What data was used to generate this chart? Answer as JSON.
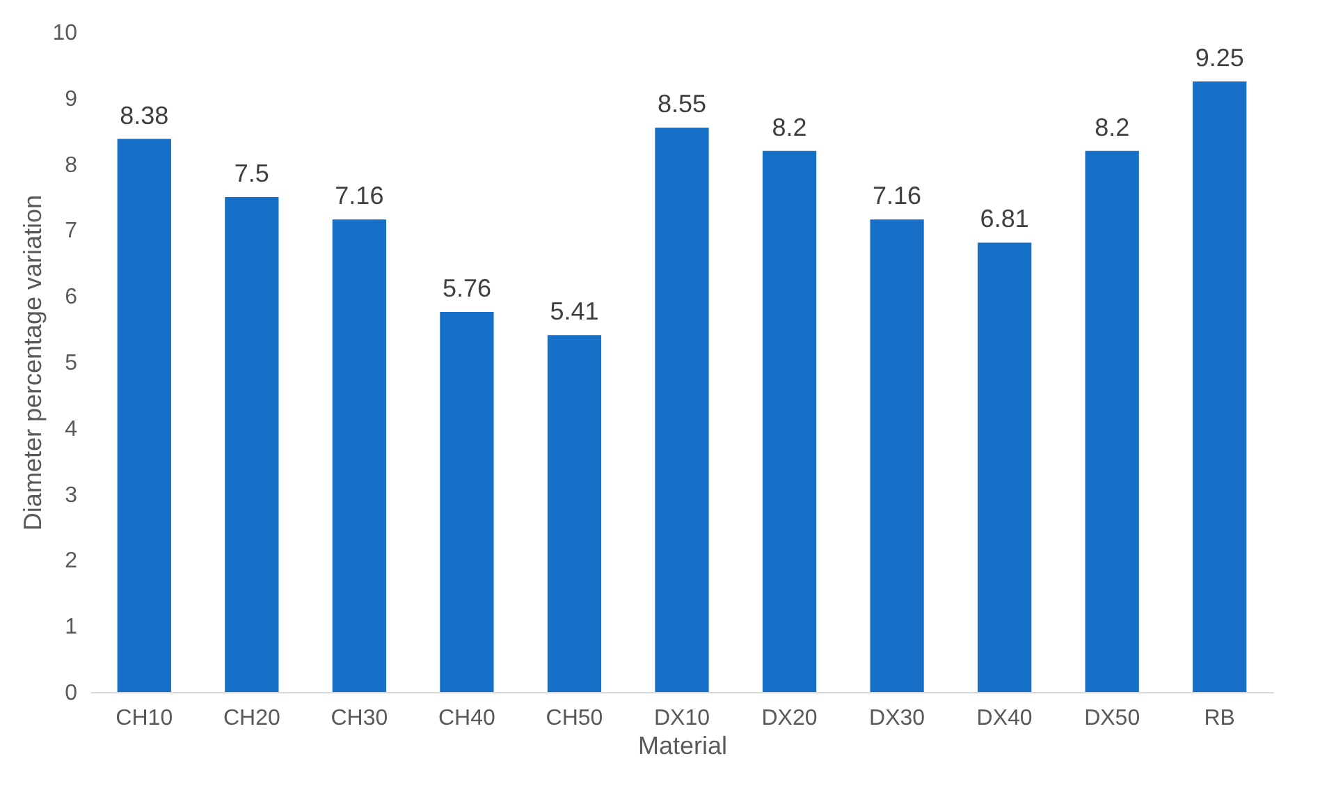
{
  "chart_data": {
    "type": "bar",
    "xlabel": "Material",
    "ylabel": "Diameter percentage variation",
    "categories": [
      "CH10",
      "CH20",
      "CH30",
      "CH40",
      "CH50",
      "DX10",
      "DX20",
      "DX30",
      "DX40",
      "DX50",
      "RB"
    ],
    "values": [
      8.38,
      7.5,
      7.16,
      5.76,
      5.41,
      8.55,
      8.2,
      7.16,
      6.81,
      8.2,
      9.25
    ],
    "color": "#1670c8",
    "ylim": [
      0,
      10
    ],
    "yticks": [
      0,
      1,
      2,
      3,
      4,
      5,
      6,
      7,
      8,
      9,
      10
    ],
    "grid": false,
    "data_labels": true
  }
}
